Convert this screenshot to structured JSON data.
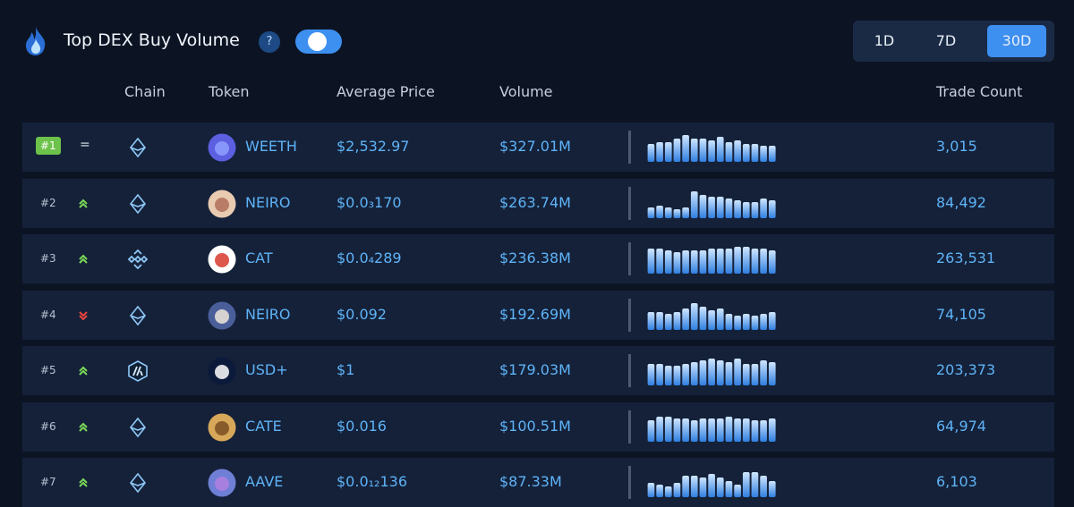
{
  "header": {
    "title": "Top DEX Buy Volume",
    "help": "?",
    "periods": [
      "1D",
      "7D",
      "30D"
    ]
  },
  "table": {
    "columns": [
      "Chain",
      "Token",
      "Average Price",
      "Volume",
      "Trade Count"
    ],
    "rows": [
      {
        "rank": "#1",
        "change": "=",
        "token": "WEETH",
        "price": "$2,532.97",
        "volume": "$327.01M",
        "trades": "3,015",
        "sparkline": [
          20,
          22,
          22,
          26,
          30,
          26,
          26,
          24,
          28,
          22,
          24,
          20,
          20,
          18,
          18
        ]
      },
      {
        "rank": "#2",
        "token": "NEIRO",
        "price": "$0.0₃170",
        "volume": "$263.74M",
        "trades": "84,492",
        "sparkline": [
          12,
          14,
          12,
          10,
          12,
          30,
          26,
          24,
          24,
          22,
          20,
          18,
          18,
          22,
          20
        ]
      },
      {
        "rank": "#3",
        "token": "CAT",
        "price": "$0.0₄289",
        "volume": "$236.38M",
        "trades": "263,531",
        "sparkline": [
          28,
          28,
          26,
          24,
          26,
          26,
          26,
          28,
          28,
          28,
          30,
          30,
          28,
          28,
          26
        ]
      },
      {
        "rank": "#4",
        "token": "NEIRO",
        "price": "$0.092",
        "volume": "$192.69M",
        "trades": "74,105",
        "sparkline": [
          20,
          20,
          18,
          20,
          24,
          30,
          26,
          22,
          24,
          18,
          16,
          18,
          16,
          18,
          20
        ]
      },
      {
        "rank": "#5",
        "token": "USD+",
        "price": "$1",
        "volume": "$179.03M",
        "trades": "203,373",
        "sparkline": [
          24,
          24,
          22,
          22,
          24,
          26,
          28,
          30,
          28,
          26,
          30,
          24,
          24,
          28,
          26
        ]
      },
      {
        "rank": "#6",
        "token": "CATE",
        "price": "$0.016",
        "volume": "$100.51M",
        "trades": "64,974",
        "sparkline": [
          24,
          28,
          28,
          26,
          26,
          24,
          26,
          26,
          26,
          28,
          26,
          26,
          24,
          24,
          26
        ]
      },
      {
        "rank": "#7",
        "token": "AAVE",
        "price": "$0.0₁₂136",
        "volume": "$87.33M",
        "trades": "6,103",
        "sparkline": [
          16,
          14,
          12,
          16,
          24,
          24,
          22,
          26,
          22,
          18,
          14,
          28,
          28,
          24,
          18
        ]
      }
    ]
  }
}
